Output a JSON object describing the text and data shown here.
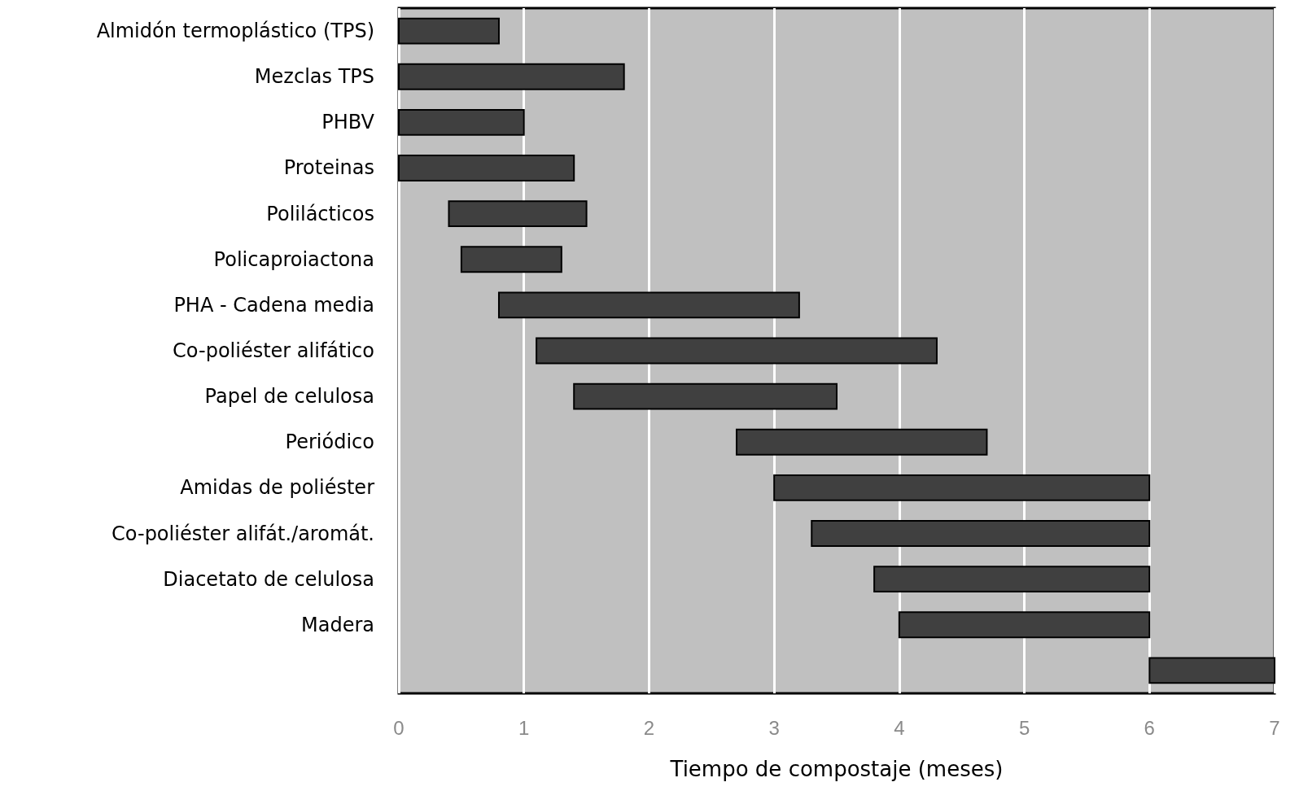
{
  "chart_data": {
    "type": "bar",
    "orientation": "horizontal",
    "xlabel": "Tiempo de compostaje (meses)",
    "categories": [
      "Almidón termoplástico (TPS)",
      "Mezclas TPS",
      "PHBV",
      "Proteinas",
      "Polilácticos",
      "Policaproiactona",
      "PHA - Cadena media",
      "Co-poliéster alifático",
      "Papel de celulosa",
      "Periódico",
      "Amidas de poliéster",
      "Co-poliéster alifát./aromát.",
      "Diacetato de celulosa",
      "Madera",
      null
    ],
    "base": [
      0,
      0,
      0,
      0,
      0.4,
      0.5,
      0.8,
      1.1,
      1.4,
      2.7,
      3,
      3.3,
      3.8,
      4,
      6
    ],
    "values": [
      0.8,
      1.8,
      1.0,
      1.4,
      1.1,
      0.8,
      2.4,
      3.2,
      2.1,
      2.0,
      3,
      2.7,
      2.2,
      2,
      1
    ],
    "color": "#404040",
    "xlim": [
      0,
      7
    ],
    "xticks": [
      0,
      1,
      2,
      3,
      4,
      5,
      6,
      7
    ],
    "grid": "x"
  }
}
